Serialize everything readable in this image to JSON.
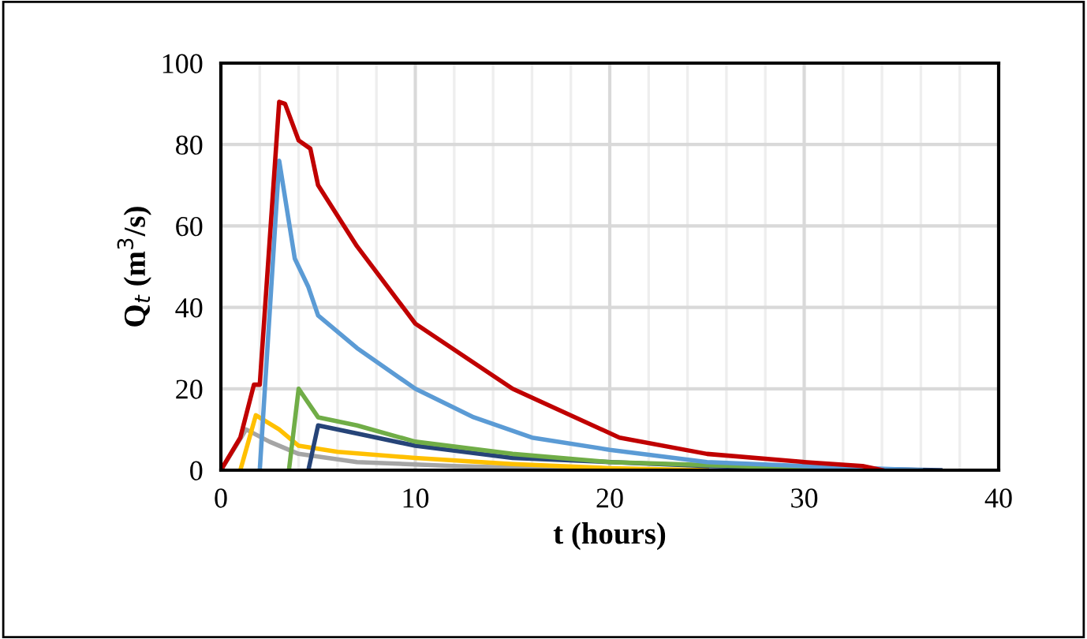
{
  "chart_data": {
    "type": "line",
    "xlabel": "t (hours)",
    "ylabel": "Q$_{t}$ (m$^{3}$/s)",
    "xlim": [
      0,
      40
    ],
    "ylim": [
      0,
      100
    ],
    "xticks": [
      0,
      10,
      20,
      30,
      40
    ],
    "yticks": [
      0,
      20,
      40,
      60,
      80,
      100
    ],
    "grid": true,
    "legend": false,
    "marker": "none",
    "line_style": "solid",
    "series": [
      {
        "color": "#a5a5a5",
        "x": [
          0,
          1.3,
          2.5,
          4,
          7,
          12,
          20
        ],
        "values": [
          0,
          10,
          7,
          4,
          2,
          1,
          0
        ]
      },
      {
        "color": "#ffc000",
        "x": [
          1.0,
          1.8,
          3,
          4,
          6,
          10,
          15,
          20,
          25
        ],
        "values": [
          0,
          13.5,
          10,
          6,
          4.5,
          3,
          1.5,
          0.5,
          0
        ]
      },
      {
        "color": "#264478",
        "x": [
          4.5,
          5,
          7,
          10,
          15,
          25,
          37
        ],
        "values": [
          0,
          11,
          9,
          6,
          3,
          1,
          0
        ]
      },
      {
        "color": "#70ad47",
        "x": [
          3.5,
          4,
          5,
          7,
          10,
          15,
          20,
          30,
          35
        ],
        "values": [
          0,
          20,
          13,
          11,
          7,
          4,
          2,
          0.5,
          0
        ]
      },
      {
        "color": "#5b9bd5",
        "x": [
          2.0,
          3.0,
          3.8,
          4.5,
          5,
          7,
          10,
          13,
          16,
          20,
          25,
          30,
          36
        ],
        "values": [
          0,
          76,
          52,
          45,
          38,
          30,
          20,
          13,
          8,
          5,
          2,
          1,
          0
        ]
      },
      {
        "color": "#c00000",
        "x": [
          0,
          1.0,
          1.7,
          2.0,
          3.0,
          3.3,
          4.0,
          4.6,
          5.0,
          7,
          10,
          15,
          20.5,
          25,
          30,
          33,
          34
        ],
        "values": [
          0,
          8,
          21,
          21,
          90.5,
          90,
          81,
          79,
          70,
          55,
          36,
          20,
          8,
          4,
          2,
          1,
          0
        ]
      }
    ]
  }
}
